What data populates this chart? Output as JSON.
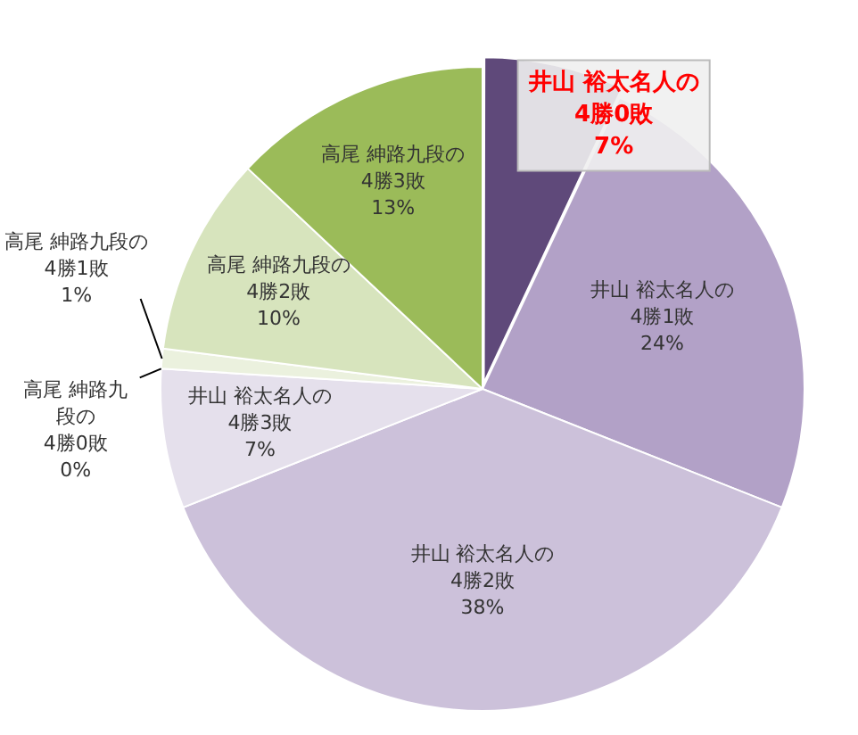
{
  "chart_data": {
    "type": "pie",
    "categories": [
      "井山 裕太名人の4勝0敗",
      "井山 裕太名人の4勝1敗",
      "井山 裕太名人の4勝2敗",
      "井山 裕太名人の4勝3敗",
      "高尾 紳路九段の4勝0敗",
      "高尾 紳路九段の4勝1敗",
      "高尾 紳路九段の4勝2敗",
      "高尾 紳路九段の4勝3敗"
    ],
    "values": [
      7,
      24,
      38,
      7,
      0,
      1,
      10,
      13
    ],
    "value_labels": [
      "7%",
      "24%",
      "38%",
      "7%",
      "0%",
      "1%",
      "10%",
      "13%"
    ],
    "colors": [
      "#5f497a",
      "#b2a1c7",
      "#ccc1da",
      "#e5e0ec",
      "#c3d69b",
      "#ebf1de",
      "#d7e4bd",
      "#9bbb59"
    ],
    "legend": false
  }
}
